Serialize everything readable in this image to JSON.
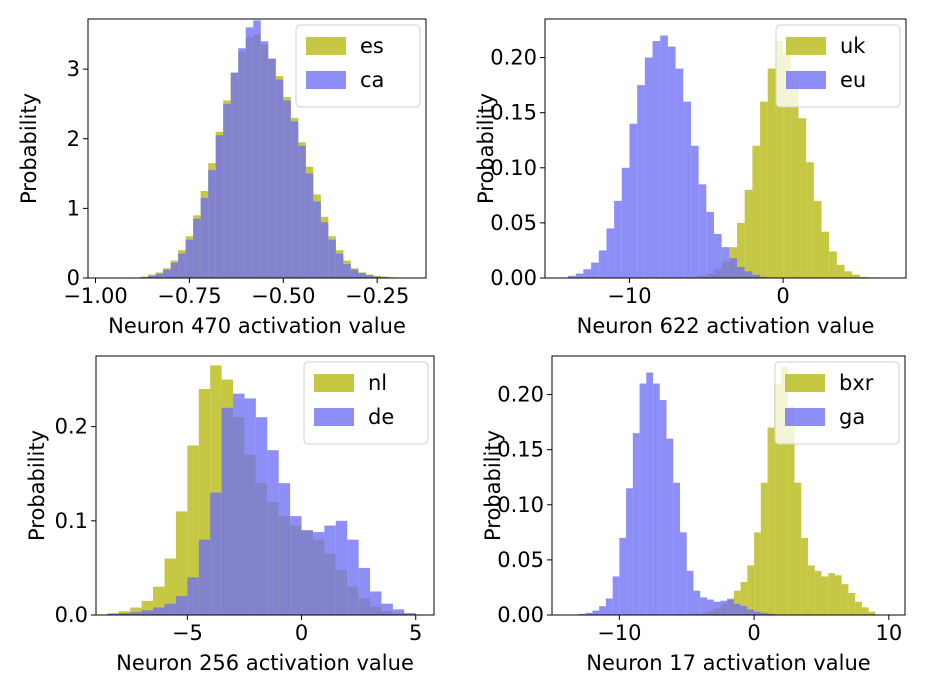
{
  "colors": {
    "series_a": "#bcbd22",
    "series_b": "#6e6ef5",
    "overlap": "#5e5a82"
  },
  "chart_data": [
    {
      "type": "histogram",
      "xlabel": "Neuron 470 activation value",
      "ylabel": "Probability",
      "xlim": [
        -1.02,
        -0.12
      ],
      "ylim": [
        0,
        3.72
      ],
      "xticks": [
        -1.0,
        -0.75,
        -0.5,
        -0.25
      ],
      "xtick_labels": [
        "−1.00",
        "−0.75",
        "−0.50",
        "−0.25"
      ],
      "yticks": [
        0,
        1,
        2,
        3
      ],
      "ytick_labels": [
        "0",
        "1",
        "2",
        "3"
      ],
      "legend": "top-right",
      "bin_edges": [
        -0.88,
        -0.86,
        -0.84,
        -0.82,
        -0.8,
        -0.78,
        -0.76,
        -0.74,
        -0.72,
        -0.7,
        -0.68,
        -0.66,
        -0.64,
        -0.62,
        -0.6,
        -0.58,
        -0.56,
        -0.54,
        -0.52,
        -0.5,
        -0.48,
        -0.46,
        -0.44,
        -0.42,
        -0.4,
        -0.38,
        -0.36,
        -0.34,
        -0.32,
        -0.3,
        -0.28,
        -0.26,
        -0.24,
        -0.22,
        -0.2,
        -0.18
      ],
      "series": [
        {
          "name": "es",
          "values": [
            0.02,
            0.05,
            0.08,
            0.14,
            0.25,
            0.4,
            0.6,
            0.9,
            1.25,
            1.65,
            2.1,
            2.55,
            2.95,
            3.25,
            3.45,
            3.5,
            3.35,
            3.15,
            2.9,
            2.6,
            2.3,
            1.95,
            1.6,
            1.2,
            0.88,
            0.6,
            0.4,
            0.25,
            0.14,
            0.08,
            0.05,
            0.03,
            0.02,
            0.01,
            0.005
          ]
        },
        {
          "name": "ca",
          "values": [
            0.01,
            0.03,
            0.06,
            0.12,
            0.22,
            0.35,
            0.55,
            0.85,
            1.15,
            1.55,
            2.05,
            2.5,
            2.95,
            3.3,
            3.6,
            3.7,
            3.4,
            3.15,
            2.85,
            2.55,
            2.25,
            1.9,
            1.5,
            1.1,
            0.8,
            0.55,
            0.35,
            0.2,
            0.12,
            0.07,
            0.04,
            0.02,
            0.01,
            0.005,
            0.002
          ]
        }
      ]
    },
    {
      "type": "histogram",
      "xlabel": "Neuron 622 activation value",
      "ylabel": "Probability",
      "xlim": [
        -15.5,
        8.0
      ],
      "ylim": [
        0,
        0.235
      ],
      "xticks": [
        -10,
        0
      ],
      "xtick_labels": [
        "−10",
        "0"
      ],
      "yticks": [
        0,
        0.05,
        0.1,
        0.15,
        0.2
      ],
      "ytick_labels": [
        "0.00",
        "0.05",
        "0.10",
        "0.15",
        "0.20"
      ],
      "legend": "top-right",
      "bin_edges": [
        -14.0,
        -13.5,
        -13.0,
        -12.5,
        -12.0,
        -11.5,
        -11.0,
        -10.5,
        -10.0,
        -9.5,
        -9.0,
        -8.5,
        -8.0,
        -7.5,
        -7.0,
        -6.5,
        -6.0,
        -5.5,
        -5.0,
        -4.5,
        -4.0,
        -3.5,
        -3.0,
        -2.5,
        -2.0,
        -1.5,
        -1.0,
        -0.5,
        0.0,
        0.5,
        1.0,
        1.5,
        2.0,
        2.5,
        3.0,
        3.5,
        4.0,
        4.5,
        5.0,
        5.5,
        6.0,
        6.5
      ],
      "series": [
        {
          "name": "uk",
          "values": [
            0,
            0,
            0,
            0,
            0,
            0,
            0,
            0,
            0,
            0,
            0,
            0,
            0,
            0,
            0,
            0,
            0,
            0.002,
            0.004,
            0.008,
            0.015,
            0.028,
            0.05,
            0.08,
            0.12,
            0.16,
            0.19,
            0.215,
            0.205,
            0.18,
            0.145,
            0.105,
            0.07,
            0.042,
            0.024,
            0.012,
            0.006,
            0.003,
            0.001,
            0.0005,
            0.0002
          ]
        },
        {
          "name": "eu",
          "values": [
            0.002,
            0.004,
            0.008,
            0.014,
            0.025,
            0.045,
            0.07,
            0.1,
            0.14,
            0.175,
            0.2,
            0.215,
            0.22,
            0.21,
            0.19,
            0.16,
            0.12,
            0.085,
            0.06,
            0.04,
            0.028,
            0.018,
            0.01,
            0.006,
            0.003,
            0.001,
            0.0005,
            0.0002,
            0,
            0,
            0,
            0,
            0,
            0,
            0,
            0,
            0,
            0,
            0,
            0,
            0
          ]
        }
      ]
    },
    {
      "type": "histogram",
      "xlabel": "Neuron 256 activation value",
      "ylabel": "Probability",
      "xlim": [
        -9.0,
        5.8
      ],
      "ylim": [
        0,
        0.275
      ],
      "xticks": [
        -5,
        0,
        5
      ],
      "xtick_labels": [
        "−5",
        "0",
        "5"
      ],
      "yticks": [
        0,
        0.1,
        0.2
      ],
      "ytick_labels": [
        "0.0",
        "0.1",
        "0.2"
      ],
      "legend": "top-right",
      "bin_edges": [
        -8.5,
        -8.0,
        -7.5,
        -7.0,
        -6.5,
        -6.0,
        -5.5,
        -5.0,
        -4.5,
        -4.0,
        -3.5,
        -3.0,
        -2.5,
        -2.0,
        -1.5,
        -1.0,
        -0.5,
        0.0,
        0.5,
        1.0,
        1.5,
        2.0,
        2.5,
        3.0,
        3.5,
        4.0,
        4.5,
        5.0
      ],
      "series": [
        {
          "name": "nl",
          "values": [
            0.002,
            0.004,
            0.008,
            0.015,
            0.03,
            0.06,
            0.11,
            0.18,
            0.24,
            0.265,
            0.25,
            0.21,
            0.17,
            0.14,
            0.12,
            0.105,
            0.095,
            0.09,
            0.08,
            0.065,
            0.048,
            0.03,
            0.018,
            0.009,
            0.004,
            0.002,
            0.001
          ]
        },
        {
          "name": "de",
          "values": [
            0.001,
            0.002,
            0.003,
            0.005,
            0.008,
            0.012,
            0.02,
            0.04,
            0.08,
            0.13,
            0.22,
            0.235,
            0.23,
            0.21,
            0.175,
            0.14,
            0.105,
            0.09,
            0.088,
            0.095,
            0.1,
            0.08,
            0.05,
            0.025,
            0.012,
            0.006,
            0.002
          ]
        }
      ]
    },
    {
      "type": "histogram",
      "xlabel": "Neuron 17 activation value",
      "ylabel": "Probability",
      "xlim": [
        -15.0,
        11.2
      ],
      "ylim": [
        0,
        0.235
      ],
      "xticks": [
        -10,
        0,
        10
      ],
      "xtick_labels": [
        "−10",
        "0",
        "10"
      ],
      "yticks": [
        0,
        0.05,
        0.1,
        0.15,
        0.2
      ],
      "ytick_labels": [
        "0.00",
        "0.05",
        "0.10",
        "0.15",
        "0.20"
      ],
      "legend": "top-right",
      "bin_edges": [
        -13.0,
        -12.5,
        -12.0,
        -11.5,
        -11.0,
        -10.5,
        -10.0,
        -9.5,
        -9.0,
        -8.5,
        -8.0,
        -7.5,
        -7.0,
        -6.5,
        -6.0,
        -5.5,
        -5.0,
        -4.5,
        -4.0,
        -3.5,
        -3.0,
        -2.5,
        -2.0,
        -1.5,
        -1.0,
        -0.5,
        0.0,
        0.5,
        1.0,
        1.5,
        2.0,
        2.5,
        3.0,
        3.5,
        4.0,
        4.5,
        5.0,
        5.5,
        6.0,
        6.5,
        7.0,
        7.5,
        8.0,
        8.5,
        9.0
      ],
      "series": [
        {
          "name": "bxr",
          "values": [
            0,
            0,
            0,
            0,
            0,
            0,
            0,
            0,
            0,
            0,
            0,
            0,
            0,
            0,
            0,
            0,
            0.0005,
            0.001,
            0.002,
            0.004,
            0.006,
            0.01,
            0.015,
            0.022,
            0.03,
            0.045,
            0.075,
            0.12,
            0.17,
            0.21,
            0.225,
            0.19,
            0.12,
            0.07,
            0.045,
            0.04,
            0.035,
            0.038,
            0.036,
            0.028,
            0.02,
            0.012,
            0.007,
            0.003
          ]
        },
        {
          "name": "ga",
          "values": [
            0.001,
            0.002,
            0.004,
            0.008,
            0.015,
            0.035,
            0.07,
            0.115,
            0.165,
            0.21,
            0.22,
            0.21,
            0.195,
            0.16,
            0.12,
            0.075,
            0.04,
            0.022,
            0.016,
            0.014,
            0.012,
            0.013,
            0.014,
            0.01,
            0.008,
            0.005,
            0.003,
            0.002,
            0.001,
            0,
            0,
            0,
            0,
            0,
            0,
            0,
            0,
            0,
            0,
            0,
            0,
            0,
            0,
            0
          ]
        }
      ]
    }
  ]
}
